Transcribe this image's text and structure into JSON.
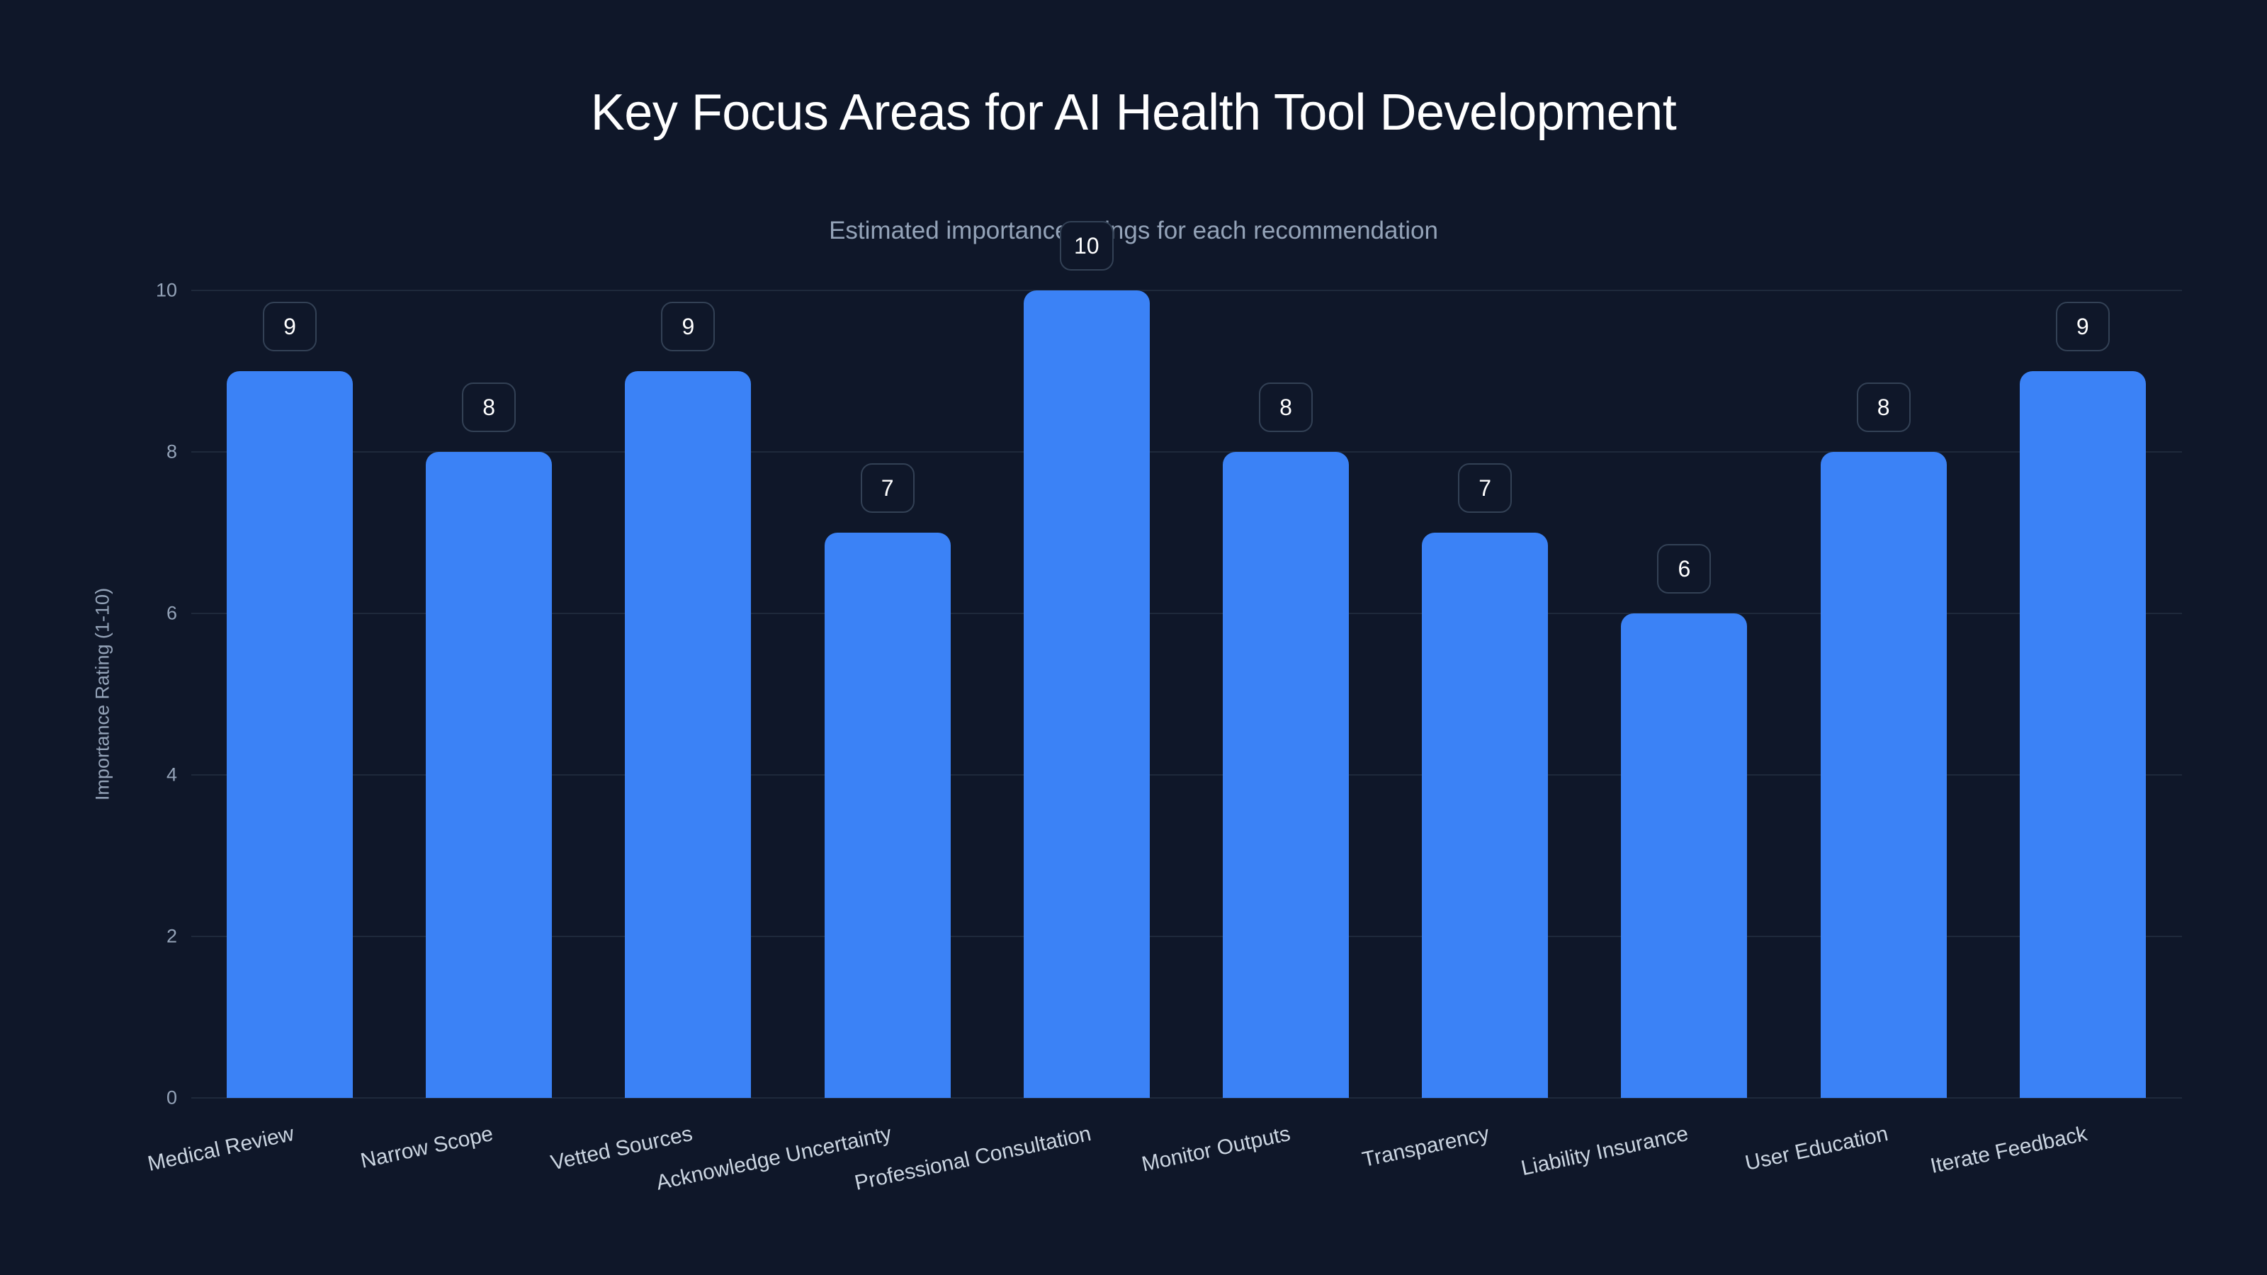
{
  "header": {
    "title": "Key Focus Areas for AI Health Tool Development",
    "subtitle": "Estimated importance ratings for each recommendation"
  },
  "colors": {
    "background": "#0f1729",
    "bar": "#3b82f6",
    "grid": "#1e293b",
    "badge_border": "#334155",
    "axis_text": "#94a3b8",
    "label_text": "#cbd5e1",
    "title_text": "#ffffff"
  },
  "axis": {
    "ylabel": "Importance Rating (1-10)",
    "yticks": [
      "0",
      "2",
      "4",
      "6",
      "8",
      "10"
    ]
  },
  "bars": [
    {
      "label": "Medical Review",
      "value": "9"
    },
    {
      "label": "Narrow Scope",
      "value": "8"
    },
    {
      "label": "Vetted Sources",
      "value": "9"
    },
    {
      "label": "Acknowledge Uncertainty",
      "value": "7"
    },
    {
      "label": "Professional Consultation",
      "value": "10"
    },
    {
      "label": "Monitor Outputs",
      "value": "8"
    },
    {
      "label": "Transparency",
      "value": "7"
    },
    {
      "label": "Liability Insurance",
      "value": "6"
    },
    {
      "label": "User Education",
      "value": "8"
    },
    {
      "label": "Iterate Feedback",
      "value": "9"
    }
  ],
  "chart_data": {
    "type": "bar",
    "title": "Key Focus Areas for AI Health Tool Development",
    "subtitle": "Estimated importance ratings for each recommendation",
    "categories": [
      "Medical Review",
      "Narrow Scope",
      "Vetted Sources",
      "Acknowledge Uncertainty",
      "Professional Consultation",
      "Monitor Outputs",
      "Transparency",
      "Liability Insurance",
      "User Education",
      "Iterate Feedback"
    ],
    "values": [
      9,
      8,
      9,
      7,
      10,
      8,
      7,
      6,
      8,
      9
    ],
    "xlabel": "",
    "ylabel": "Importance Rating (1-10)",
    "ylim": [
      0,
      10
    ],
    "yticks": [
      0,
      2,
      4,
      6,
      8,
      10
    ],
    "grid": true,
    "legend": null,
    "data_labels": true
  }
}
